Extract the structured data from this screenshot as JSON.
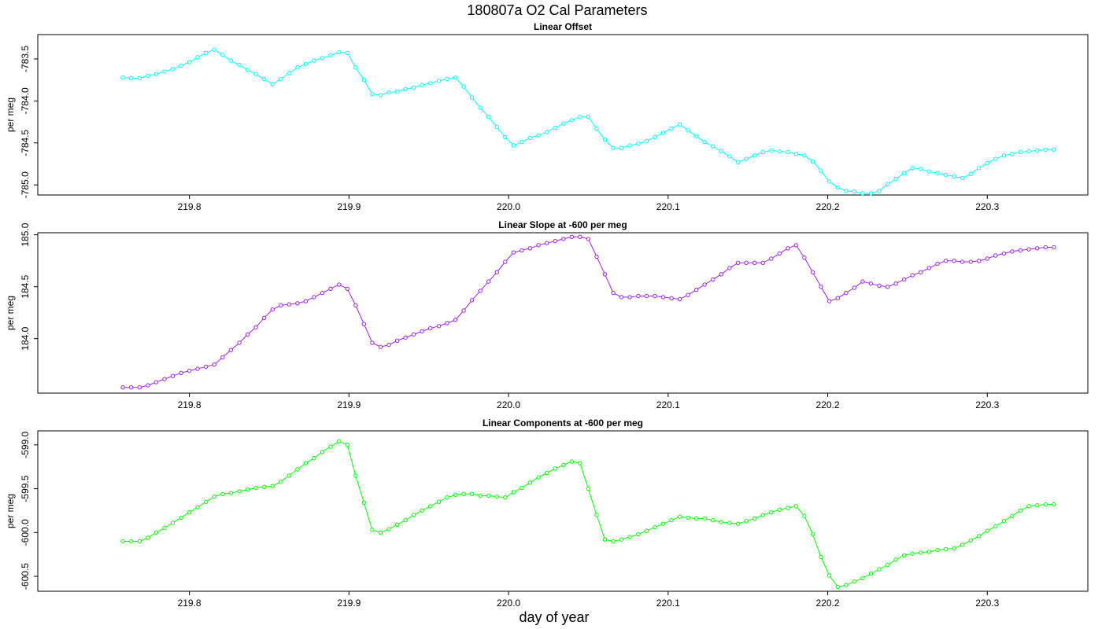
{
  "figure": {
    "title": "180807a   O2 Cal Parameters",
    "xlabel": "day of year"
  },
  "chart_data": [
    {
      "type": "line",
      "title": "Linear Offset",
      "xlabel": "",
      "ylabel": "per meg",
      "color": "#00ffff",
      "xlim": [
        219.705,
        220.363
      ],
      "ylim": [
        -785.12,
        -783.21
      ],
      "x_ticks": [
        219.8,
        219.9,
        220.0,
        220.1,
        220.2,
        220.3
      ],
      "x_tick_labels": [
        "219.8",
        "219.9",
        "220.0",
        "220.1",
        "220.2",
        "220.3"
      ],
      "y_ticks": [
        -783.5,
        -784.0,
        -784.5,
        -785.0
      ],
      "y_tick_labels": [
        "-783.5",
        "-784.0",
        "-784.5",
        "-785.0"
      ],
      "series": [
        {
          "x": [
            219.7583,
            219.7635,
            219.7688,
            219.774,
            219.7792,
            219.7844,
            219.7896,
            219.7948,
            219.8,
            219.8052,
            219.8104,
            219.8156,
            219.8208,
            219.826,
            219.8313,
            219.8365,
            219.8417,
            219.8469,
            219.8521,
            219.8573,
            219.8625,
            219.8677,
            219.8729,
            219.8781,
            219.8833,
            219.8885,
            219.8938,
            219.899,
            219.9042,
            219.9094,
            219.9146,
            219.9198,
            219.925,
            219.9302,
            219.9354,
            219.9406,
            219.9458,
            219.951,
            219.9563,
            219.9615,
            219.9667,
            219.9719,
            219.9771,
            219.9823,
            219.9875,
            219.9927,
            219.9979,
            220.0031,
            220.0083,
            220.0135,
            220.0188,
            220.024,
            220.0292,
            220.0344,
            220.0396,
            220.0448,
            220.05,
            220.0552,
            220.0604,
            220.0656,
            220.0708,
            220.076,
            220.0813,
            220.0865,
            220.0917,
            220.0969,
            220.1021,
            220.1073,
            220.1125,
            220.1177,
            220.1229,
            220.1281,
            220.1333,
            220.1385,
            220.1438,
            220.149,
            220.1542,
            220.1594,
            220.1646,
            220.1698,
            220.175,
            220.1802,
            220.1854,
            220.1906,
            220.1958,
            220.201,
            220.2063,
            220.2115,
            220.2167,
            220.2219,
            220.2271,
            220.2323,
            220.2375,
            220.2427,
            220.2479,
            220.2531,
            220.2583,
            220.2635,
            220.2688,
            220.274,
            220.2792,
            220.2844,
            220.2896,
            220.2948,
            220.3,
            220.3052,
            220.3104,
            220.3156,
            220.3208,
            220.326,
            220.3313,
            220.3365,
            220.3417
          ],
          "y": [
            -783.72,
            -783.73,
            -783.73,
            -783.7,
            -783.68,
            -783.65,
            -783.62,
            -783.58,
            -783.54,
            -783.48,
            -783.43,
            -783.39,
            -783.45,
            -783.52,
            -783.57,
            -783.63,
            -783.68,
            -783.74,
            -783.8,
            -783.74,
            -783.67,
            -783.6,
            -783.56,
            -783.52,
            -783.49,
            -783.46,
            -783.42,
            -783.43,
            -783.6,
            -783.75,
            -783.92,
            -783.93,
            -783.9,
            -783.89,
            -783.86,
            -783.84,
            -783.81,
            -783.79,
            -783.76,
            -783.74,
            -783.72,
            -783.83,
            -783.96,
            -784.08,
            -784.19,
            -784.31,
            -784.43,
            -784.53,
            -784.49,
            -784.44,
            -784.41,
            -784.37,
            -784.32,
            -784.27,
            -784.23,
            -784.19,
            -784.19,
            -784.33,
            -784.46,
            -784.56,
            -784.56,
            -784.53,
            -784.51,
            -784.48,
            -784.43,
            -784.38,
            -784.33,
            -784.28,
            -784.35,
            -784.42,
            -784.49,
            -784.54,
            -784.6,
            -784.66,
            -784.73,
            -784.69,
            -784.65,
            -784.61,
            -784.59,
            -784.6,
            -784.61,
            -784.63,
            -784.65,
            -784.72,
            -784.83,
            -784.96,
            -785.03,
            -785.07,
            -785.08,
            -785.1,
            -785.1,
            -785.07,
            -784.99,
            -784.93,
            -784.86,
            -784.8,
            -784.81,
            -784.84,
            -784.86,
            -784.88,
            -784.9,
            -784.92,
            -784.87,
            -784.8,
            -784.74,
            -784.69,
            -784.65,
            -784.63,
            -784.61,
            -784.6,
            -784.59,
            -784.58,
            -784.58
          ]
        }
      ],
      "grid": false,
      "legend": "none"
    },
    {
      "type": "line",
      "title": "Linear Slope at -600 per meg",
      "xlabel": "",
      "ylabel": "per meg",
      "color": "#a020f0",
      "xlim": [
        219.705,
        220.363
      ],
      "ylim": [
        183.475,
        185.02
      ],
      "x_ticks": [
        219.8,
        219.9,
        220.0,
        220.1,
        220.2,
        220.3
      ],
      "x_tick_labels": [
        "219.8",
        "219.9",
        "220.0",
        "220.1",
        "220.2",
        "220.3"
      ],
      "y_ticks": [
        184.0,
        184.5,
        185.0
      ],
      "y_tick_labels": [
        "184.0",
        "184.5",
        "185.0"
      ],
      "series": [
        {
          "x": [
            219.7583,
            219.7635,
            219.7688,
            219.774,
            219.7792,
            219.7844,
            219.7896,
            219.7948,
            219.8,
            219.8052,
            219.8104,
            219.8156,
            219.8208,
            219.826,
            219.8313,
            219.8365,
            219.8417,
            219.8469,
            219.8521,
            219.8573,
            219.8625,
            219.8677,
            219.8729,
            219.8781,
            219.8833,
            219.8885,
            219.8938,
            219.899,
            219.9042,
            219.9094,
            219.9146,
            219.9198,
            219.925,
            219.9302,
            219.9354,
            219.9406,
            219.9458,
            219.951,
            219.9563,
            219.9615,
            219.9667,
            219.9719,
            219.9771,
            219.9823,
            219.9875,
            219.9927,
            219.9979,
            220.0031,
            220.0083,
            220.0135,
            220.0188,
            220.024,
            220.0292,
            220.0344,
            220.0396,
            220.0448,
            220.05,
            220.0552,
            220.0604,
            220.0656,
            220.0708,
            220.076,
            220.0813,
            220.0865,
            220.0917,
            220.0969,
            220.1021,
            220.1073,
            220.1125,
            220.1177,
            220.1229,
            220.1281,
            220.1333,
            220.1385,
            220.1438,
            220.149,
            220.1542,
            220.1594,
            220.1646,
            220.1698,
            220.175,
            220.1802,
            220.1854,
            220.1906,
            220.1958,
            220.201,
            220.2063,
            220.2115,
            220.2167,
            220.2219,
            220.2271,
            220.2323,
            220.2375,
            220.2427,
            220.2479,
            220.2531,
            220.2583,
            220.2635,
            220.2688,
            220.274,
            220.2792,
            220.2844,
            220.2896,
            220.2948,
            220.3,
            220.3052,
            220.3104,
            220.3156,
            220.3208,
            220.326,
            220.3313,
            220.3365,
            220.3417
          ],
          "y": [
            183.53,
            183.53,
            183.53,
            183.55,
            183.58,
            183.61,
            183.64,
            183.67,
            183.69,
            183.71,
            183.73,
            183.75,
            183.82,
            183.89,
            183.96,
            184.04,
            184.11,
            184.2,
            184.28,
            184.32,
            184.33,
            184.34,
            184.36,
            184.4,
            184.44,
            184.48,
            184.52,
            184.48,
            184.32,
            184.14,
            183.96,
            183.92,
            183.94,
            183.98,
            184.01,
            184.04,
            184.07,
            184.1,
            184.12,
            184.15,
            184.18,
            184.27,
            184.37,
            184.46,
            184.55,
            184.64,
            184.74,
            184.83,
            184.85,
            184.87,
            184.9,
            184.92,
            184.94,
            184.96,
            184.98,
            184.98,
            184.96,
            184.79,
            184.62,
            184.44,
            184.4,
            184.4,
            184.41,
            184.41,
            184.41,
            184.4,
            184.39,
            184.38,
            184.42,
            184.47,
            184.52,
            184.57,
            184.62,
            184.68,
            184.73,
            184.73,
            184.73,
            184.73,
            184.77,
            184.82,
            184.87,
            184.9,
            184.78,
            184.64,
            184.5,
            184.36,
            184.39,
            184.44,
            184.49,
            184.55,
            184.53,
            184.51,
            184.5,
            184.53,
            184.57,
            184.61,
            184.64,
            184.68,
            184.72,
            184.75,
            184.75,
            184.74,
            184.74,
            184.75,
            184.77,
            184.8,
            184.82,
            184.84,
            184.85,
            184.86,
            184.87,
            184.88,
            184.88
          ]
        }
      ],
      "grid": false,
      "legend": "none"
    },
    {
      "type": "line",
      "title": "Linear Components at -600 per meg",
      "xlabel": "day of year",
      "ylabel": "per meg",
      "color": "#00ff00",
      "xlim": [
        219.705,
        220.363
      ],
      "ylim": [
        -600.67,
        -598.84
      ],
      "x_ticks": [
        219.8,
        219.9,
        220.0,
        220.1,
        220.2,
        220.3
      ],
      "x_tick_labels": [
        "219.8",
        "219.9",
        "220.0",
        "220.1",
        "220.2",
        "220.3"
      ],
      "y_ticks": [
        -599.0,
        -599.5,
        -600.0,
        -600.5
      ],
      "y_tick_labels": [
        "-599.0",
        "-599.5",
        "-600.0",
        "-600.5"
      ],
      "series": [
        {
          "x": [
            219.7583,
            219.7635,
            219.7688,
            219.774,
            219.7792,
            219.7844,
            219.7896,
            219.7948,
            219.8,
            219.8052,
            219.8104,
            219.8156,
            219.8208,
            219.826,
            219.8313,
            219.8365,
            219.8417,
            219.8469,
            219.8521,
            219.8573,
            219.8625,
            219.8677,
            219.8729,
            219.8781,
            219.8833,
            219.8885,
            219.8938,
            219.899,
            219.9042,
            219.9094,
            219.9146,
            219.9198,
            219.925,
            219.9302,
            219.9354,
            219.9406,
            219.9458,
            219.951,
            219.9563,
            219.9615,
            219.9667,
            219.9719,
            219.9771,
            219.9823,
            219.9875,
            219.9927,
            219.9979,
            220.0031,
            220.0083,
            220.0135,
            220.0188,
            220.024,
            220.0292,
            220.0344,
            220.0396,
            220.0448,
            220.05,
            220.0552,
            220.0604,
            220.0656,
            220.0708,
            220.076,
            220.0813,
            220.0865,
            220.0917,
            220.0969,
            220.1021,
            220.1073,
            220.1125,
            220.1177,
            220.1229,
            220.1281,
            220.1333,
            220.1385,
            220.1438,
            220.149,
            220.1542,
            220.1594,
            220.1646,
            220.1698,
            220.175,
            220.1802,
            220.1854,
            220.1906,
            220.1958,
            220.201,
            220.2063,
            220.2115,
            220.2167,
            220.2219,
            220.2271,
            220.2323,
            220.2375,
            220.2427,
            220.2479,
            220.2531,
            220.2583,
            220.2635,
            220.2688,
            220.274,
            220.2792,
            220.2844,
            220.2896,
            220.2948,
            220.3,
            220.3052,
            220.3104,
            220.3156,
            220.3208,
            220.326,
            220.3313,
            220.3365,
            220.3417
          ],
          "y": [
            -600.1,
            -600.1,
            -600.1,
            -600.06,
            -600.0,
            -599.95,
            -599.89,
            -599.83,
            -599.77,
            -599.71,
            -599.65,
            -599.59,
            -599.56,
            -599.55,
            -599.53,
            -599.51,
            -599.49,
            -599.48,
            -599.47,
            -599.42,
            -599.35,
            -599.28,
            -599.21,
            -599.15,
            -599.08,
            -599.02,
            -598.96,
            -599.0,
            -599.35,
            -599.66,
            -599.97,
            -600.0,
            -599.96,
            -599.91,
            -599.86,
            -599.8,
            -599.75,
            -599.7,
            -599.65,
            -599.6,
            -599.57,
            -599.56,
            -599.56,
            -599.58,
            -599.58,
            -599.59,
            -599.6,
            -599.54,
            -599.49,
            -599.43,
            -599.37,
            -599.32,
            -599.27,
            -599.23,
            -599.19,
            -599.21,
            -599.5,
            -599.8,
            -600.08,
            -600.1,
            -600.08,
            -600.05,
            -600.02,
            -599.98,
            -599.94,
            -599.9,
            -599.86,
            -599.82,
            -599.83,
            -599.84,
            -599.84,
            -599.86,
            -599.88,
            -599.89,
            -599.9,
            -599.87,
            -599.84,
            -599.8,
            -599.77,
            -599.74,
            -599.72,
            -599.7,
            -599.81,
            -600.02,
            -600.28,
            -600.49,
            -600.62,
            -600.6,
            -600.56,
            -600.52,
            -600.47,
            -600.42,
            -600.37,
            -600.31,
            -600.26,
            -600.24,
            -600.23,
            -600.22,
            -600.2,
            -600.19,
            -600.18,
            -600.14,
            -600.09,
            -600.04,
            -599.98,
            -599.93,
            -599.87,
            -599.81,
            -599.75,
            -599.7,
            -599.69,
            -599.68,
            -599.68
          ]
        }
      ],
      "grid": false,
      "legend": "none"
    }
  ]
}
